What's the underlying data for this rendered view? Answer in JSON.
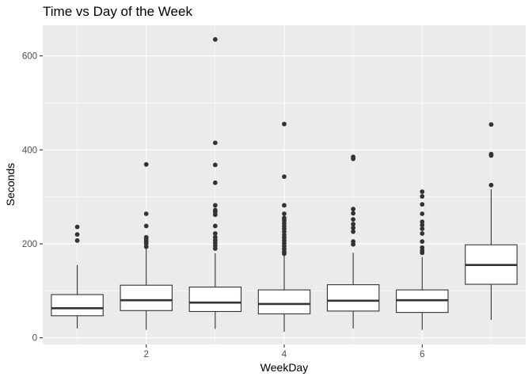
{
  "chart_data": {
    "type": "box",
    "title": "Time vs Day of the Week",
    "xlabel": "WeekDay",
    "ylabel": "Seconds",
    "xlim": [
      0.5,
      7.5
    ],
    "ylim": [
      -14,
      665
    ],
    "x_ticks": [
      2,
      4,
      6
    ],
    "y_ticks": [
      0,
      200,
      400,
      600
    ],
    "colors": {
      "panel_background": "#ebebeb",
      "grid": "#ffffff",
      "box_fill": "#ffffff",
      "box_stroke": "#333333",
      "outlier": "#333333"
    },
    "series": [
      {
        "x": 1,
        "q1": 47,
        "median": 63,
        "q3": 92,
        "whisker_low": 20,
        "whisker_high": 155,
        "outliers": [
          207,
          220,
          236
        ]
      },
      {
        "x": 2,
        "q1": 58,
        "median": 80,
        "q3": 112,
        "whisker_low": 17,
        "whisker_high": 189,
        "outliers": [
          194,
          201,
          206,
          211,
          214,
          238,
          264,
          369
        ]
      },
      {
        "x": 3,
        "q1": 56,
        "median": 75,
        "q3": 108,
        "whisker_low": 19,
        "whisker_high": 180,
        "outliers": [
          190,
          196,
          202,
          208,
          214,
          222,
          238,
          262,
          268,
          272,
          282,
          330,
          368,
          415,
          635
        ]
      },
      {
        "x": 4,
        "q1": 51,
        "median": 72,
        "q3": 102,
        "whisker_low": 13,
        "whisker_high": 175,
        "outliers": [
          179,
          183,
          189,
          195,
          201,
          207,
          213,
          219,
          226,
          232,
          238,
          244,
          250,
          255,
          264,
          282,
          343,
          455
        ]
      },
      {
        "x": 5,
        "q1": 57,
        "median": 79,
        "q3": 113,
        "whisker_low": 20,
        "whisker_high": 181,
        "outliers": [
          199,
          205,
          226,
          234,
          242,
          252,
          265,
          274,
          381,
          385
        ]
      },
      {
        "x": 6,
        "q1": 54,
        "median": 80,
        "q3": 102,
        "whisker_low": 17,
        "whisker_high": 172,
        "outliers": [
          181,
          186,
          192,
          205,
          222,
          232,
          240,
          247,
          264,
          284,
          301,
          311
        ]
      },
      {
        "x": 7,
        "q1": 114,
        "median": 155,
        "q3": 198,
        "whisker_low": 38,
        "whisker_high": 316,
        "outliers": [
          325,
          388,
          391,
          454
        ]
      }
    ]
  }
}
